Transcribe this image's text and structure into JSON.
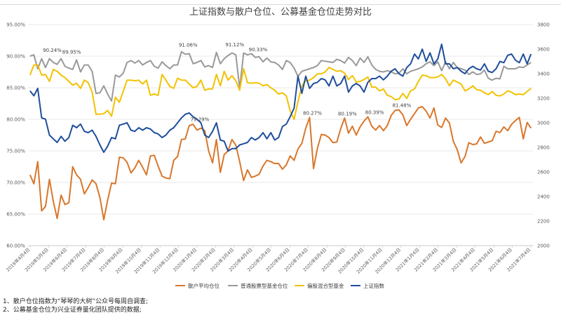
{
  "chart_data": {
    "type": "line",
    "title": "上证指数与散户仓位、公募基金仓位走势对比",
    "ylim_left": [
      0.6,
      0.95
    ],
    "left_ticks": [
      "60.00%",
      "65.00%",
      "70.00%",
      "75.00%",
      "80.00%",
      "85.00%",
      "90.00%",
      "95.00%"
    ],
    "left_tick_values": [
      0.6,
      0.65,
      0.7,
      0.75,
      0.8,
      0.85,
      0.9,
      0.95
    ],
    "ylim_right": [
      2000,
      3800
    ],
    "right_ticks": [
      "2000",
      "2200",
      "2400",
      "2600",
      "2800",
      "3000",
      "3200",
      "3400",
      "3600",
      "3800"
    ],
    "right_tick_values": [
      2000,
      2200,
      2400,
      2600,
      2800,
      3000,
      3200,
      3400,
      3600,
      3800
    ],
    "x_tick_labels": [
      "2019年4月4日",
      "2019年5月4日",
      "2019年6月4日",
      "2019年7月4日",
      "2019年8月4日",
      "2019年9月4日",
      "2019年10月4日",
      "2019年11月4日",
      "2019年12月4日",
      "2020年1月4日",
      "2020年2月4日",
      "2020年3月4日",
      "2020年4月4日",
      "2020年5月4日",
      "2020年6月4日",
      "2020年7月4日",
      "2020年8月4日",
      "2020年9月4日",
      "2020年10月4日",
      "2020年11月4日",
      "2020年12月4日",
      "2021年1月4日",
      "2021年2月4日",
      "2021年3月4日",
      "2021年4月4日",
      "2021年5月4日",
      "2021年6月4日",
      "2021年7月4日"
    ],
    "grid": true,
    "legend_position": "bottom",
    "series": [
      {
        "name": "散户平均仓位",
        "axis": "left",
        "color": "#d9772b",
        "values": [
          0.712,
          0.698,
          0.733,
          0.655,
          0.662,
          0.705,
          0.67,
          0.643,
          0.68,
          0.665,
          0.668,
          0.725,
          0.712,
          0.705,
          0.682,
          0.692,
          0.704,
          0.698,
          0.676,
          0.641,
          0.672,
          0.699,
          0.698,
          0.74,
          0.739,
          0.732,
          0.715,
          0.723,
          0.735,
          0.724,
          0.712,
          0.742,
          0.743,
          0.726,
          0.71,
          0.707,
          0.706,
          0.735,
          0.741,
          0.768,
          0.769,
          0.79,
          0.792,
          0.783,
          0.786,
          0.782,
          0.75,
          0.731,
          0.768,
          0.716,
          0.744,
          0.75,
          0.768,
          0.759,
          0.733,
          0.703,
          0.72,
          0.708,
          0.71,
          0.713,
          0.726,
          0.735,
          0.733,
          0.73,
          0.73,
          0.721,
          0.728,
          0.742,
          0.735,
          0.753,
          0.762,
          0.786,
          0.803,
          0.722,
          0.754,
          0.776,
          0.775,
          0.771,
          0.763,
          0.764,
          0.785,
          0.802,
          0.778,
          0.789,
          0.775,
          0.788,
          0.797,
          0.804,
          0.789,
          0.783,
          0.79,
          0.782,
          0.79,
          0.806,
          0.814,
          0.815,
          0.807,
          0.79,
          0.8,
          0.809,
          0.818,
          0.82,
          0.813,
          0.802,
          0.818,
          0.791,
          0.787,
          0.802,
          0.794,
          0.765,
          0.752,
          0.731,
          0.741,
          0.763,
          0.76,
          0.761,
          0.772,
          0.762,
          0.764,
          0.766,
          0.781,
          0.779,
          0.788,
          0.782,
          0.792,
          0.798,
          0.803,
          0.769,
          0.795,
          0.786
        ]
      },
      {
        "name": "普通股票型基金仓位",
        "axis": "left",
        "color": "#999999",
        "values": [
          0.9,
          0.902,
          0.88,
          0.896,
          0.882,
          0.896,
          0.89,
          0.887,
          0.896,
          0.884,
          0.881,
          0.879,
          0.894,
          0.875,
          0.886,
          0.886,
          0.876,
          0.841,
          0.842,
          0.853,
          0.84,
          0.829,
          0.87,
          0.867,
          0.873,
          0.89,
          0.893,
          0.889,
          0.893,
          0.886,
          0.89,
          0.893,
          0.884,
          0.881,
          0.891,
          0.885,
          0.88,
          0.886,
          0.886,
          0.907,
          0.903,
          0.904,
          0.888,
          0.89,
          0.893,
          0.883,
          0.885,
          0.882,
          0.906,
          0.888,
          0.896,
          0.901,
          0.905,
          0.902,
          0.849,
          0.905,
          0.902,
          0.904,
          0.898,
          0.899,
          0.891,
          0.897,
          0.891,
          0.89,
          0.886,
          0.879,
          0.893,
          0.89,
          0.881,
          0.868,
          0.876,
          0.878,
          0.88,
          0.882,
          0.885,
          0.893,
          0.892,
          0.891,
          0.89,
          0.895,
          0.893,
          0.889,
          0.898,
          0.893,
          0.885,
          0.897,
          0.89,
          0.899,
          0.886,
          0.879,
          0.876,
          0.875,
          0.877,
          0.875,
          0.872,
          0.873,
          0.88,
          0.872,
          0.876,
          0.878,
          0.88,
          0.883,
          0.888,
          0.891,
          0.885,
          0.891,
          0.877,
          0.891,
          0.88,
          0.89,
          0.882,
          0.88,
          0.878,
          0.871,
          0.875,
          0.871,
          0.872,
          0.878,
          0.865,
          0.862,
          0.865,
          0.864,
          0.884,
          0.88,
          0.88,
          0.88,
          0.883,
          0.882,
          0.886,
          0.89
        ]
      },
      {
        "name": "偏股混合型基金",
        "axis": "left",
        "color": "#f2c200",
        "values": [
          0.87,
          0.886,
          0.886,
          0.87,
          0.871,
          0.86,
          0.879,
          0.876,
          0.87,
          0.866,
          0.86,
          0.854,
          0.857,
          0.849,
          0.862,
          0.858,
          0.843,
          0.808,
          0.808,
          0.809,
          0.814,
          0.805,
          0.835,
          0.827,
          0.844,
          0.862,
          0.862,
          0.861,
          0.862,
          0.856,
          0.862,
          0.838,
          0.84,
          0.838,
          0.871,
          0.862,
          0.852,
          0.849,
          0.865,
          0.862,
          0.862,
          0.856,
          0.85,
          0.852,
          0.862,
          0.846,
          0.848,
          0.848,
          0.871,
          0.853,
          0.876,
          0.862,
          0.869,
          0.861,
          0.846,
          0.88,
          0.858,
          0.857,
          0.858,
          0.857,
          0.853,
          0.855,
          0.85,
          0.846,
          0.84,
          0.842,
          0.837,
          0.813,
          0.8,
          0.828,
          0.853,
          0.861,
          0.862,
          0.866,
          0.872,
          0.872,
          0.875,
          0.882,
          0.879,
          0.876,
          0.877,
          0.873,
          0.863,
          0.869,
          0.859,
          0.86,
          0.863,
          0.867,
          0.851,
          0.851,
          0.845,
          0.848,
          0.838,
          0.836,
          0.831,
          0.832,
          0.841,
          0.833,
          0.845,
          0.848,
          0.86,
          0.87,
          0.869,
          0.866,
          0.866,
          0.867,
          0.871,
          0.864,
          0.853,
          0.862,
          0.859,
          0.856,
          0.845,
          0.848,
          0.853,
          0.847,
          0.846,
          0.842,
          0.839,
          0.844,
          0.838,
          0.837,
          0.84,
          0.845,
          0.843,
          0.839,
          0.84,
          0.839,
          0.844,
          0.849
        ]
      },
      {
        "name": "上证指数",
        "axis": "right",
        "color": "#1f4e9c",
        "values": [
          3260,
          3220,
          3280,
          3040,
          3030,
          2900,
          2870,
          2840,
          2890,
          2850,
          2880,
          2980,
          2960,
          2990,
          2930,
          2920,
          2940,
          2890,
          2820,
          2760,
          2810,
          2880,
          2870,
          2980,
          2990,
          3000,
          2940,
          2930,
          2960,
          2940,
          2960,
          2950,
          2920,
          2910,
          2880,
          2900,
          2940,
          2960,
          3000,
          3040,
          3070,
          3080,
          3050,
          3030,
          3000,
          2900,
          2880,
          2930,
          3000,
          2860,
          2850,
          2770,
          2790,
          2790,
          2820,
          2830,
          2840,
          2880,
          2860,
          2880,
          2920,
          2870,
          2920,
          2860,
          2880,
          2970,
          2990,
          3050,
          3120,
          3380,
          3240,
          3380,
          3280,
          3320,
          3330,
          3360,
          3350,
          3300,
          3380,
          3300,
          3320,
          3380,
          3250,
          3300,
          3320,
          3300,
          3250,
          3330,
          3360,
          3360,
          3380,
          3350,
          3380,
          3420,
          3440,
          3400,
          3380,
          3450,
          3480,
          3560,
          3520,
          3600,
          3500,
          3570,
          3480,
          3520,
          3640,
          3480,
          3480,
          3440,
          3450,
          3420,
          3400,
          3440,
          3460,
          3440,
          3430,
          3480,
          3420,
          3410,
          3440,
          3500,
          3490,
          3550,
          3560,
          3510,
          3490,
          3560,
          3480,
          3560
        ]
      }
    ],
    "annotations": [
      {
        "text": "90.24%",
        "index": 5,
        "series": 1,
        "value": 0.9024
      },
      {
        "text": "89.95%",
        "index": 10,
        "series": 1,
        "value": 0.8995
      },
      {
        "text": "91.06%",
        "index": 40,
        "series": 1,
        "value": 0.9106
      },
      {
        "text": "91.12%",
        "index": 52,
        "series": 1,
        "value": 0.9112
      },
      {
        "text": "90.33%",
        "index": 58,
        "series": 1,
        "value": 0.9033
      },
      {
        "text": "79.29%",
        "index": 43,
        "series": 0,
        "value": 0.7929
      },
      {
        "text": "80.27%",
        "index": 72,
        "series": 0,
        "value": 0.8027
      },
      {
        "text": "80.19%",
        "index": 81,
        "series": 0,
        "value": 0.8019
      },
      {
        "text": "80.39%",
        "index": 88,
        "series": 0,
        "value": 0.8039
      },
      {
        "text": "81.48%",
        "index": 95,
        "series": 0,
        "value": 0.8148
      }
    ]
  },
  "notes": [
    "1、散户仓位指数为“琴琴的大树”公众号每周自调查;",
    "2、公募基金仓位为兴业证券量化团队提供的数据;"
  ]
}
